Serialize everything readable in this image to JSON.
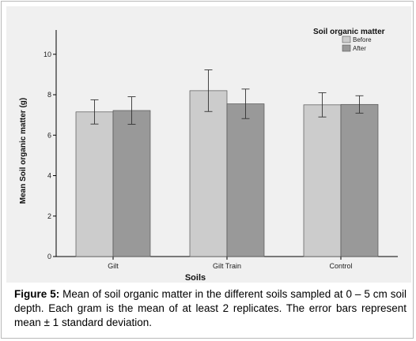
{
  "chart_data": {
    "type": "bar",
    "ylabel": "Mean Soil organic matter (g)",
    "xlabel": "Soils",
    "categories": [
      "Gilt",
      "Gilt Train",
      "Control"
    ],
    "ylim": [
      0,
      11.2
    ],
    "yticks": [
      "0",
      "2",
      "4",
      "6",
      "8",
      "10"
    ],
    "series": [
      {
        "name": "Before",
        "values": [
          7.15,
          8.2,
          7.5
        ],
        "error": [
          0.6,
          1.03,
          0.6
        ],
        "color": "#cccccc"
      },
      {
        "name": "After",
        "values": [
          7.22,
          7.55,
          7.52
        ],
        "error": [
          0.68,
          0.73,
          0.43
        ],
        "color": "#999999"
      }
    ],
    "legend": {
      "title": "Soil organic matter",
      "position": "top-right"
    },
    "grid": false
  },
  "caption": {
    "label": "Figure 5:",
    "text": " Mean of soil organic matter in the different soils sampled at 0 – 5 cm soil depth. Each gram is the mean of at least 2 replicates. The error bars represent mean ± 1 standard deviation."
  }
}
